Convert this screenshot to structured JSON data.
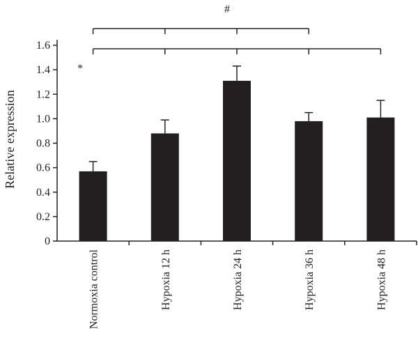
{
  "chart_data": {
    "type": "bar",
    "categories": [
      "Normoxia control",
      "Hypoxia 12 h",
      "Hypoxia 24 h",
      "Hypoxia 36 h",
      "Hypoxia 48 h"
    ],
    "values": [
      0.57,
      0.88,
      1.31,
      0.98,
      1.01
    ],
    "errors": [
      0.08,
      0.11,
      0.12,
      0.07,
      0.14
    ],
    "xlabel": "",
    "ylabel": "Relative expression",
    "ylim": [
      0,
      1.6
    ],
    "yticks": [
      0,
      0.2,
      0.4,
      0.6,
      0.8,
      "1.0",
      1.2,
      1.4,
      1.6
    ],
    "grid": false,
    "bar_color": "#231f20",
    "annotations": {
      "hash": {
        "text": "#",
        "spans": [
          "Normoxia control",
          "Hypoxia 12 h",
          "Hypoxia 24 h",
          "Hypoxia 36 h"
        ]
      },
      "star": {
        "text": "*",
        "spans": [
          "Normoxia control",
          "Hypoxia 12 h",
          "Hypoxia 24 h",
          "Hypoxia 36 h",
          "Hypoxia 48 h"
        ]
      }
    }
  }
}
